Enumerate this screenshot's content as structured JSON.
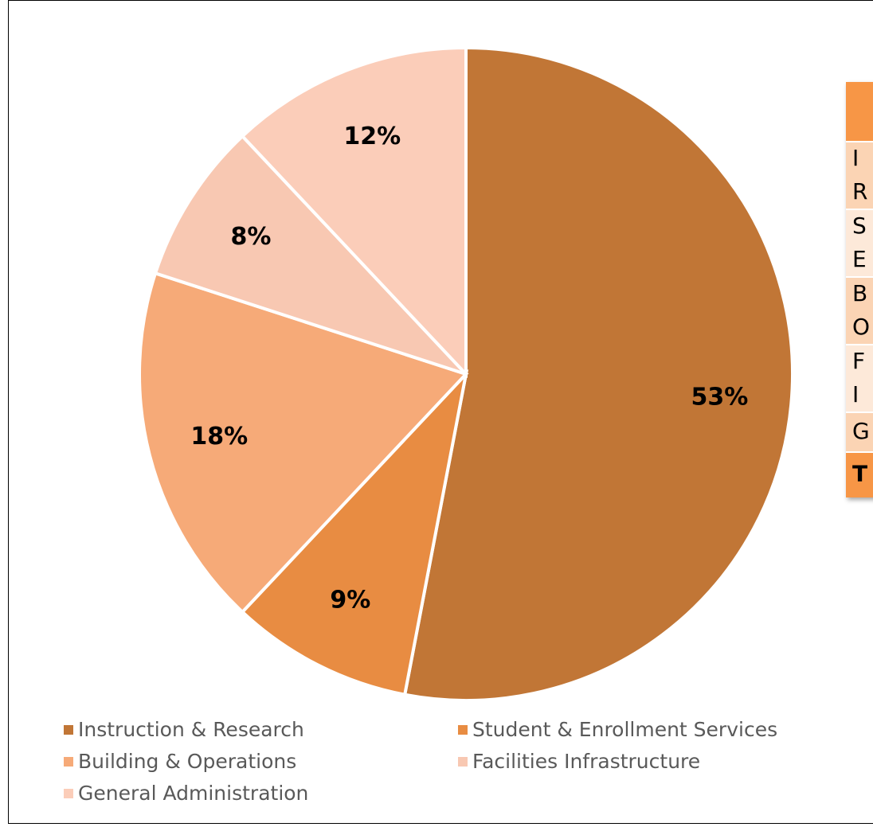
{
  "chart_data": {
    "type": "pie",
    "categories": [
      "Instruction & Research",
      "Student & Enrollment Services",
      "Building & Operations",
      "Facilities Infrastructure",
      "General Administration"
    ],
    "values": [
      53,
      9,
      18,
      8,
      12
    ],
    "value_labels": [
      "53%",
      "9%",
      "18%",
      "8%",
      "12%"
    ],
    "colors": [
      "#c17636",
      "#e88c42",
      "#f6aa78",
      "#f8c8b2",
      "#fbcdb9"
    ]
  },
  "table": {
    "rows": [
      [
        "I",
        "R"
      ],
      [
        "S",
        "E"
      ],
      [
        "B",
        "O"
      ],
      [
        "F",
        "I"
      ],
      [
        "G"
      ],
      [
        "T"
      ]
    ]
  }
}
